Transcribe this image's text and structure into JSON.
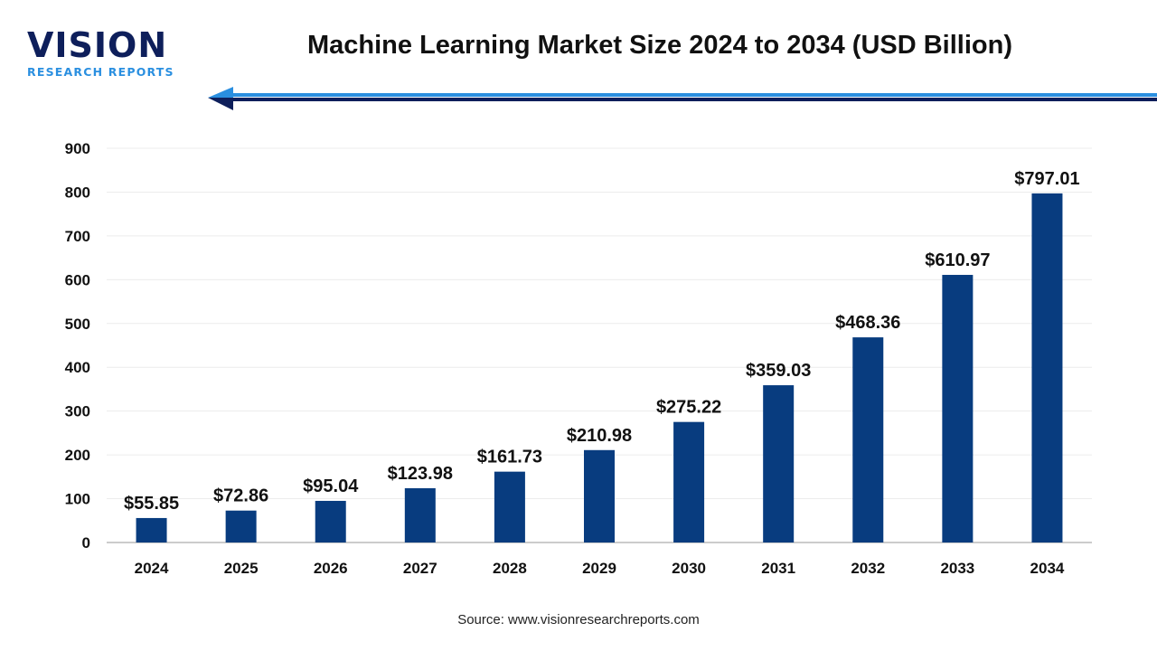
{
  "logo": {
    "name": "VISION",
    "tagline": "RESEARCH REPORTS"
  },
  "colors": {
    "bar": "#083c7f",
    "arrow_light": "#2a8fe0",
    "arrow_dark": "#0e1f5b"
  },
  "source": "Source: www.visionresearchreports.com",
  "chart_data": {
    "type": "bar",
    "title": "Machine Learning Market Size 2024 to 2034 (USD Billion)",
    "categories": [
      "2024",
      "2025",
      "2026",
      "2027",
      "2028",
      "2029",
      "2030",
      "2031",
      "2032",
      "2033",
      "2034"
    ],
    "values": [
      55.85,
      72.86,
      95.04,
      123.98,
      161.73,
      210.98,
      275.22,
      359.03,
      468.36,
      610.97,
      797.01
    ],
    "data_labels": [
      "$55.85",
      "$72.86",
      "$95.04",
      "$123.98",
      "$161.73",
      "$210.98",
      "$275.22",
      "$359.03",
      "$468.36",
      "$610.97",
      "$797.01"
    ],
    "yticks": [
      0,
      100,
      200,
      300,
      400,
      500,
      600,
      700,
      800,
      900
    ],
    "ylim": [
      0,
      900
    ],
    "xlabel": "",
    "ylabel": "",
    "grid": true,
    "legend": "none"
  }
}
